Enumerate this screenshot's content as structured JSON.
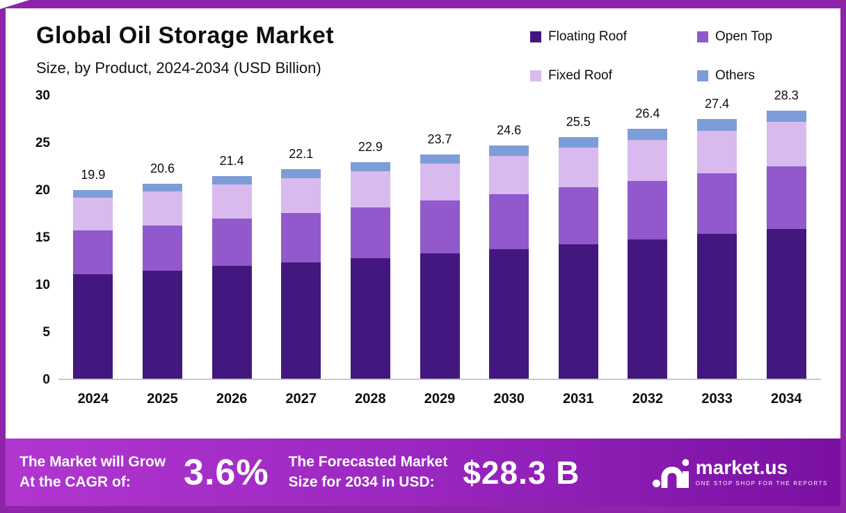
{
  "header": {
    "title": "Global Oil Storage Market",
    "subtitle": "Size, by Product, 2024-2034 (USD Billion)"
  },
  "colors": {
    "frame_border": "#8E24AA",
    "banner_gradient_left": "#B136D0",
    "banner_gradient_right": "#7A10A2"
  },
  "chart_data": {
    "type": "bar",
    "stacked": true,
    "title": "Global Oil Storage Market",
    "subtitle": "Size, by Product, 2024-2034 (USD Billion)",
    "unit": "USD Billion",
    "categories": [
      "2024",
      "2025",
      "2026",
      "2027",
      "2028",
      "2029",
      "2030",
      "2031",
      "2032",
      "2033",
      "2034"
    ],
    "series": [
      {
        "name": "Floating Roof",
        "color": "#42187E",
        "values": [
          11.0,
          11.4,
          11.9,
          12.3,
          12.7,
          13.2,
          13.7,
          14.2,
          14.7,
          15.3,
          15.8
        ]
      },
      {
        "name": "Open Top",
        "color": "#9159CB",
        "values": [
          4.7,
          4.8,
          5.0,
          5.2,
          5.4,
          5.6,
          5.8,
          6.0,
          6.2,
          6.4,
          6.6
        ]
      },
      {
        "name": "Fixed Roof",
        "color": "#D8BAEF",
        "values": [
          3.4,
          3.6,
          3.6,
          3.7,
          3.8,
          3.9,
          4.0,
          4.2,
          4.3,
          4.5,
          4.7
        ]
      },
      {
        "name": "Others",
        "color": "#7C9DD7",
        "values": [
          0.8,
          0.8,
          0.9,
          0.9,
          1.0,
          1.0,
          1.1,
          1.1,
          1.2,
          1.2,
          1.2
        ]
      }
    ],
    "totals": [
      19.9,
      20.6,
      21.4,
      22.1,
      22.9,
      23.7,
      24.6,
      25.5,
      26.4,
      27.4,
      28.3
    ],
    "y_ticks": [
      30,
      25,
      20,
      15,
      10,
      5,
      0
    ],
    "ylim": [
      0,
      30
    ],
    "grid": false,
    "legend_position": "top-right"
  },
  "banner": {
    "cagr_label_line1": "The Market will Grow",
    "cagr_label_line2": "At the CAGR of:",
    "cagr_value": "3.6%",
    "forecast_label_line1": "The Forecasted Market",
    "forecast_label_line2": "Size for 2034 in USD:",
    "forecast_value": "$28.3 B",
    "logo_text": "market.us",
    "logo_tagline": "ONE STOP SHOP FOR THE REPORTS"
  }
}
